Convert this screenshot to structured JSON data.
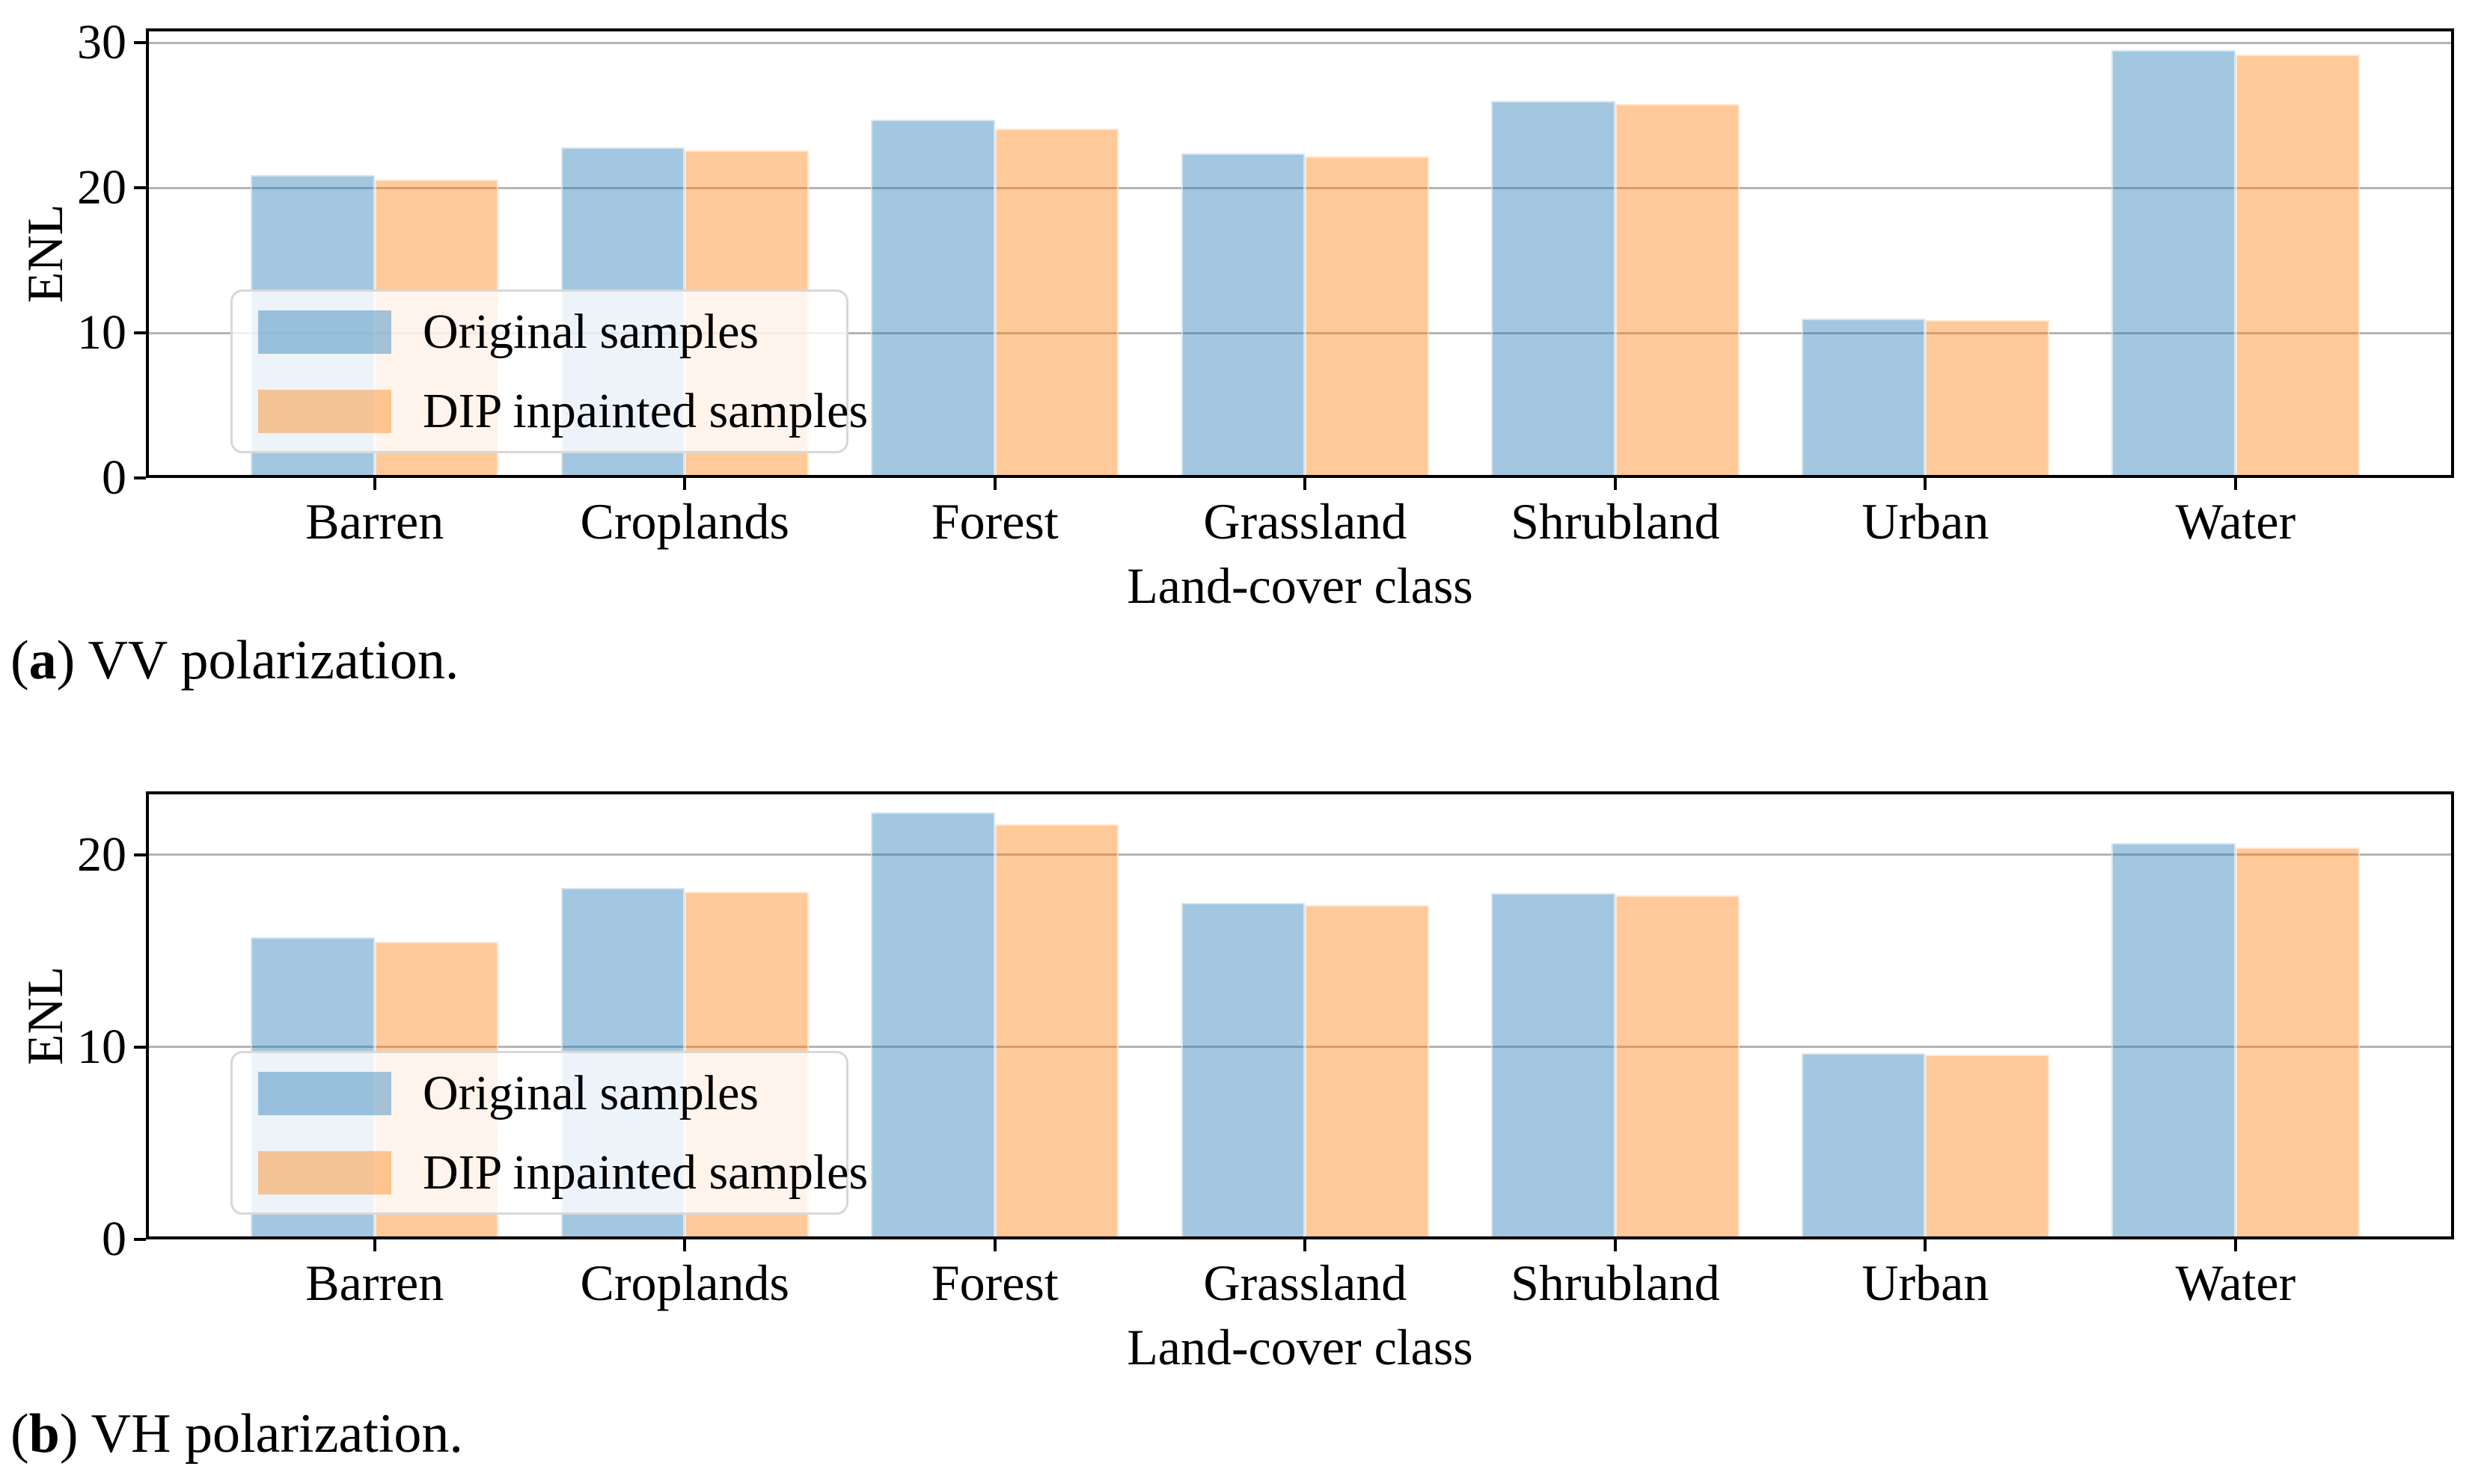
{
  "figure": {
    "captions": [
      {
        "open": "(",
        "letter": "a",
        "rest": ") VV polarization."
      },
      {
        "open": "(",
        "letter": "b",
        "rest": ") VH polarization."
      }
    ]
  },
  "legend": {
    "items": [
      {
        "label": "Original samples",
        "series": "original"
      },
      {
        "label": "DIP inpainted samples",
        "series": "dip"
      }
    ]
  },
  "colors": {
    "original": "rgba(31,119,180,0.41)",
    "dip": "rgba(255,127,14,0.42)",
    "grid": "#b4b4b4",
    "spine": "#000000",
    "legend_border": "#d8d8d8",
    "legend_bg": "rgba(255,255,255,0.8)"
  },
  "chart_data": [
    {
      "type": "bar",
      "title": "(a) VV polarization.",
      "xlabel": "Land-cover class",
      "ylabel": "ENL",
      "categories": [
        "Barren",
        "Croplands",
        "Forest",
        "Grassland",
        "Shrubland",
        "Urban",
        "Water"
      ],
      "series": [
        {
          "name": "Original samples",
          "values": [
            20.9,
            22.8,
            24.7,
            22.4,
            26.0,
            11.0,
            29.5
          ]
        },
        {
          "name": "DIP inpainted samples",
          "values": [
            20.6,
            22.6,
            24.1,
            22.2,
            25.8,
            10.9,
            29.2
          ]
        }
      ],
      "ylim": [
        0,
        31
      ],
      "yticks": [
        0,
        10,
        20,
        30
      ],
      "grid": true,
      "legend_position": "lower left"
    },
    {
      "type": "bar",
      "title": "(b) VH polarization.",
      "xlabel": "Land-cover class",
      "ylabel": "ENL",
      "categories": [
        "Barren",
        "Croplands",
        "Forest",
        "Grassland",
        "Shrubland",
        "Urban",
        "Water"
      ],
      "series": [
        {
          "name": "Original samples",
          "values": [
            15.7,
            18.3,
            22.2,
            17.5,
            18.0,
            9.7,
            20.6
          ]
        },
        {
          "name": "DIP inpainted samples",
          "values": [
            15.5,
            18.1,
            21.6,
            17.4,
            17.9,
            9.6,
            20.4
          ]
        }
      ],
      "ylim": [
        0,
        23.3
      ],
      "yticks": [
        0,
        10,
        20
      ],
      "grid": true,
      "legend_position": "lower left"
    }
  ]
}
